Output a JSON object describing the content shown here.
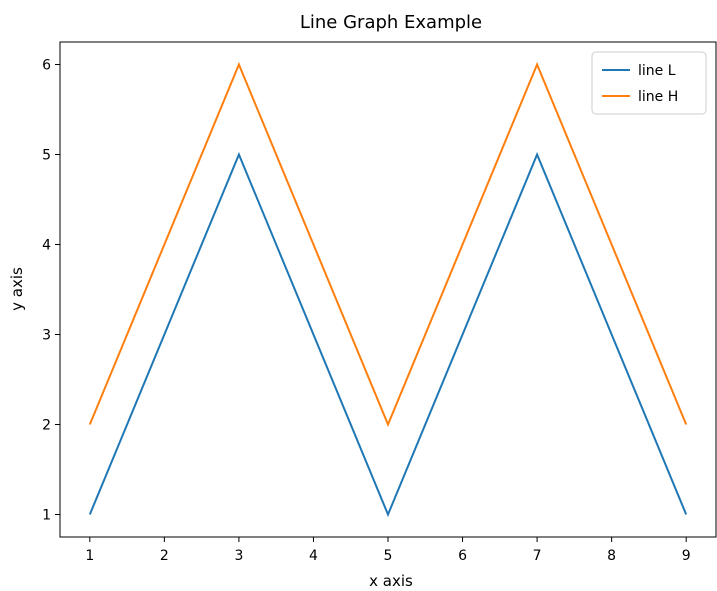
{
  "chart_data": {
    "type": "line",
    "title": "Line Graph Example",
    "xlabel": "x axis",
    "ylabel": "y axis",
    "x": [
      1,
      2,
      3,
      4,
      5,
      6,
      7,
      8,
      9
    ],
    "xlim": [
      0.6,
      9.4
    ],
    "ylim": [
      0.75,
      6.25
    ],
    "xticks": [
      1,
      2,
      3,
      4,
      5,
      6,
      7,
      8,
      9
    ],
    "yticks": [
      1,
      2,
      3,
      4,
      5,
      6
    ],
    "grid": false,
    "legend_position": "top-right",
    "series": [
      {
        "name": "line L",
        "color": "#1f77b4",
        "values": [
          1,
          3,
          5,
          3,
          1,
          3,
          5,
          3,
          1
        ]
      },
      {
        "name": "line H",
        "color": "#ff7f0e",
        "values": [
          2,
          4,
          6,
          4,
          2,
          4,
          6,
          4,
          2
        ]
      }
    ]
  }
}
